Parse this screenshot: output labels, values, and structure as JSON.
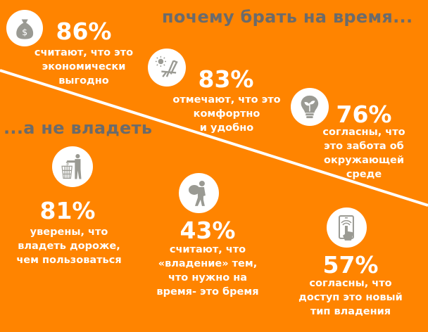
{
  "colors": {
    "background": "#ff8400",
    "title": "#6b6b6b",
    "icon": "#9a9a93",
    "text": "#ffffff"
  },
  "header": {
    "title_take": "почему брать на время...",
    "title_own": "...а не владеть"
  },
  "stats": [
    {
      "icon": "money-bag-icon",
      "percent": "86%",
      "lines": [
        "считают, что это",
        "экономически",
        "выгодно"
      ]
    },
    {
      "icon": "beach-chair-sun-icon",
      "percent": "83%",
      "lines": [
        "отмечают, что это",
        "комфортно",
        "и удобно"
      ]
    },
    {
      "icon": "eco-lightbulb-icon",
      "percent": "76%",
      "lines": [
        "согласны, что",
        "это забота об",
        "окружающей",
        "среде"
      ]
    },
    {
      "icon": "money-trash-icon",
      "percent": "81%",
      "lines": [
        "уверены, что",
        "владеть дороже,",
        "чем пользоваться"
      ]
    },
    {
      "icon": "burden-carrier-icon",
      "percent": "43%",
      "lines": [
        "считают, что",
        "«владение» тем,",
        "что нужно на",
        "время- это бремя"
      ]
    },
    {
      "icon": "smartphone-touch-icon",
      "percent": "57%",
      "lines": [
        "согласны, что",
        "доступ это новый",
        "тип владения"
      ]
    }
  ]
}
